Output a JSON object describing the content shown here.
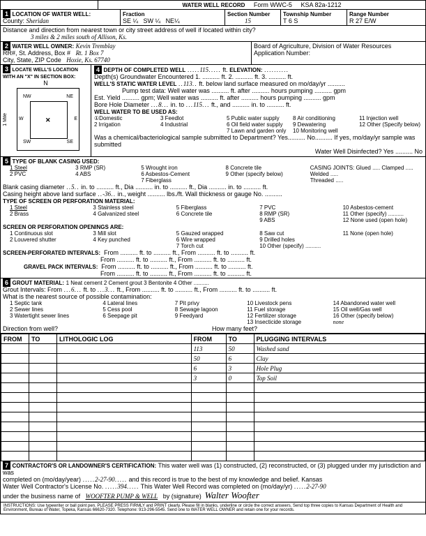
{
  "title": "WATER WELL RECORD",
  "form_no": "Form WWC-5",
  "ksa": "KSA 82a-1212",
  "loc": {
    "label": "LOCATION OF WATER WELL:",
    "county_label": "County:",
    "county": "Sheridan",
    "fraction_label": "Fraction",
    "frac1": "SE ¼",
    "frac2": "SW ¼",
    "frac3": "NE¼",
    "section_label": "Section Number",
    "section": "15",
    "township_label": "Township Number",
    "township": "T 6 S",
    "range_label": "Range Number",
    "range": "R 27 E/W",
    "distance_label": "Distance and direction from nearest town or city street address of well if located within city?",
    "distance": "3 miles & 2 miles south of Allison, Ks."
  },
  "owner": {
    "label": "WATER WELL OWNER:",
    "rr_label": "RR#, St. Address, Box #",
    "city_label": "City, State, ZIP Code",
    "name": "Kevin Tremblay",
    "addr": "Rt. 1 Box 7",
    "city": "Hoxie, Ks. 67740",
    "board": "Board of Agriculture, Division of Water Resources",
    "app_label": "Application Number:"
  },
  "locate": {
    "label": "LOCATE WELL'S LOCATION WITH AN \"X\" IN SECTION BOX:",
    "n": "N",
    "nw": "NW",
    "ne": "NE",
    "w": "W",
    "e": "E",
    "sw": "SW",
    "se": "SE",
    "mile": "1 Mile"
  },
  "depth": {
    "label": "DEPTH OF COMPLETED WELL",
    "val": "115",
    "ft": "ft.",
    "elev": "ELEVATION:",
    "depths_label": "Depth(s) Groundwater Encountered",
    "d1": "1.",
    "d2": "2.",
    "d3": "3.",
    "static_label": "WELL'S STATIC WATER LEVEL",
    "static": "113",
    "static_suffix": "ft. below land surface measured on mo/day/yr",
    "pump_label": "Pump test data:",
    "pump_text": "Well water was .......... ft. after .......... hours pumping .......... gpm",
    "est_label": "Est. Yield .......... gpm;",
    "est_text": "Well water was .......... ft. after .......... hours pumping .......... gpm",
    "bore_label": "Bore Hole Diameter",
    "bore1": "8",
    "bore2": "115",
    "bore_text": "in. to .......... ft., and .......... in. to .......... ft.",
    "use_label": "WELL WATER TO BE USED AS:",
    "uses": [
      "①Domestic",
      "3 Feedlot",
      "5 Public water supply",
      "8 Air conditioning",
      "11 Injection well",
      "2 Irrigation",
      "4 Industrial",
      "6 Oil field water supply",
      "9 Dewatering",
      "12 Other (Specify below)",
      "",
      "",
      "7 Lawn and garden only",
      "10 Monitoring well",
      ""
    ],
    "chem_label": "Was a chemical/bacteriological sample submitted to Department?",
    "chem_yes": "Yes..........",
    "chem_no": "No..........",
    "chem_suffix": "If yes, mo/day/yr sample was submitted",
    "disinfect": "Water Well Disinfected? Yes .......... No"
  },
  "casing": {
    "label": "TYPE OF BLANK CASING USED:",
    "items": [
      "1 Steel",
      "3 RMP (SR)",
      "5 Wrought iron",
      "8 Concrete tile",
      "CASING JOINTS: Glued ..... Clamped .....",
      "2 PVC",
      "4 ABS",
      "6 Asbestos-Cement",
      "9 Other (specify below)",
      "Welded .....",
      "",
      "",
      "7 Fiberglass",
      "",
      "Threaded ....."
    ],
    "blank_dia_label": "Blank casing diameter",
    "blank_dia": "5",
    "blank_text": "in. to .......... ft., Dia .......... in. to .......... ft., Dia .......... in. to .......... ft.",
    "height_label": "Casing height above land surface",
    "height": "-36",
    "height_text": "in., weight .......... lbs./ft. Wall thickness or gauge No. ..........",
    "screen_label": "TYPE OF SCREEN OR PERFORATION MATERIAL:",
    "screen_items": [
      "1 Steel",
      "3 Stainless steel",
      "5 Fiberglass",
      "7 PVC",
      "10 Asbestos-cement",
      "2 Brass",
      "4 Galvanized steel",
      "6 Concrete tile",
      "8 RMP (SR)",
      "11 Other (specify) ..........",
      "",
      "",
      "",
      "9 ABS",
      "12 None used (open hole)"
    ],
    "openings_label": "SCREEN OR PERFORATION OPENINGS ARE:",
    "openings": [
      "1 Continuous slot",
      "3 Mill slot",
      "5 Gauzed wrapped",
      "8 Saw cut",
      "11 None (open hole)",
      "2 Louvered shutter",
      "4 Key punched",
      "6 Wire wrapped",
      "9 Drilled holes",
      "",
      "",
      "",
      "7 Torch cut",
      "10 Other (specify) ..........",
      ""
    ],
    "intervals_label": "SCREEN-PERFORATED INTERVALS:",
    "gravel_label": "GRAVEL PACK INTERVALS:",
    "from_to": "From .......... ft. to .......... ft., From .......... ft. to .......... ft."
  },
  "grout": {
    "label": "GROUT MATERIAL:",
    "items": [
      "1 Neat cement",
      "2 Cement grout",
      "3 Bentonite",
      "4 Other .........."
    ],
    "intervals_label": "Grout Intervals:",
    "from1": "6",
    "to1": "3",
    "text": "From .......... ft. to .......... ft., From .......... ft. to .......... ft.",
    "contam_label": "What is the nearest source of possible contamination:",
    "contam": [
      "1 Septic tank",
      "4 Lateral lines",
      "7 Pit privy",
      "10 Livestock pens",
      "14 Abandoned water well",
      "2 Sewer lines",
      "5 Cess pool",
      "8 Sewage lagoon",
      "11 Fuel storage",
      "15 Oil well/Gas well",
      "3 Watertight sewer lines",
      "6 Seepage pit",
      "9 Feedyard",
      "12 Fertilizer storage",
      "16 Other (specify below)",
      "",
      "",
      "",
      "13 Insecticide storage",
      "none"
    ],
    "dir_label": "Direction from well?",
    "feet_label": "How many feet?"
  },
  "log": {
    "headers": [
      "FROM",
      "TO",
      "LITHOLOGIC LOG",
      "FROM",
      "TO",
      "PLUGGING INTERVALS"
    ],
    "rows": [
      [
        "",
        "",
        "",
        "113",
        "50",
        "Washed sand"
      ],
      [
        "",
        "",
        "",
        "50",
        "6",
        "Clay"
      ],
      [
        "",
        "",
        "",
        "6",
        "3",
        "Hole Plug"
      ],
      [
        "",
        "",
        "",
        "3",
        "0",
        "Top Soil"
      ],
      [
        "",
        "",
        "",
        "",
        "",
        ""
      ],
      [
        "",
        "",
        "",
        "",
        "",
        ""
      ],
      [
        "",
        "",
        "",
        "",
        "",
        ""
      ],
      [
        "",
        "",
        "",
        "",
        "",
        ""
      ],
      [
        "",
        "",
        "",
        "",
        "",
        ""
      ],
      [
        "",
        "",
        "",
        "",
        "",
        ""
      ],
      [
        "",
        "",
        "",
        "",
        "",
        ""
      ],
      [
        "",
        "",
        "",
        "",
        "",
        ""
      ]
    ]
  },
  "cert": {
    "label": "CONTRACTOR'S OR LANDOWNER'S CERTIFICATION:",
    "text1": "This water well was (1) constructed, (2) reconstructed, or (3) plugged under my jurisdiction and was",
    "completed_label": "completed on (mo/day/year)",
    "date1": "2-27-90",
    "text2": "and this record is true to the best of my knowledge and belief. Kansas",
    "lic_label": "Water Well Contractor's License No.",
    "lic": "394",
    "text3": "This Water Well Record was completed on (mo/day/yr)",
    "date2": "2-27-90",
    "bus_label": "under the business name of",
    "bus": "WOOFTER PUMP & WELL",
    "sig_label": "by (signature)",
    "sig": "Walter Woofter"
  },
  "instructions": "INSTRUCTIONS: Use typewriter or ball point pen. PLEASE PRESS FIRMLY and PRINT clearly. Please fill in blanks, underline or circle the correct answers. Send top three copies to Kansas Department of Health and Environment, Bureau of Water, Topeka, Kansas 66620-7320. Telephone: 913-296-5545. Send one to WATER WELL OWNER and retain one for your records."
}
